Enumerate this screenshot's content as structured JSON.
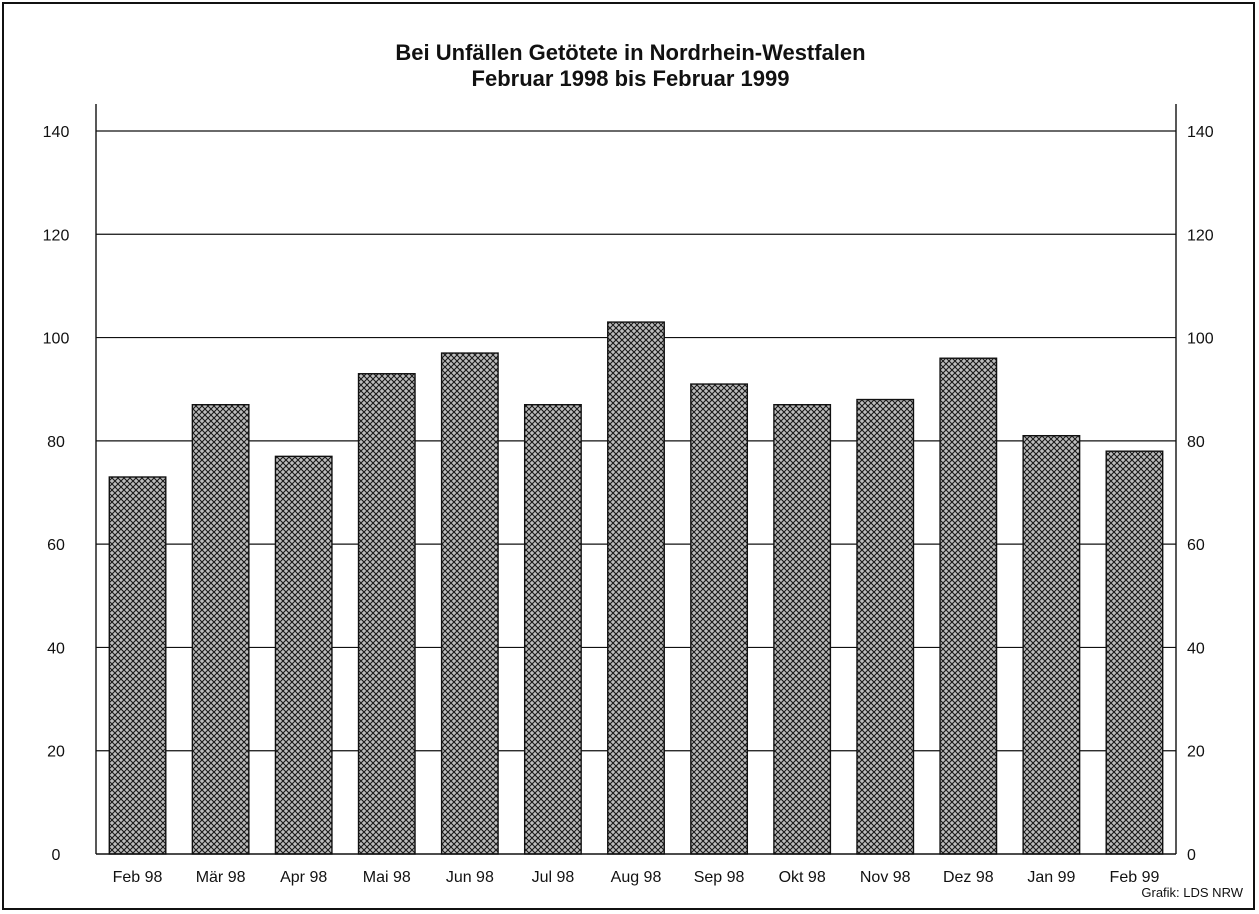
{
  "chart_data": {
    "type": "bar",
    "title_line1": "Bei Unfällen Getötete in Nordrhein-Westfalen",
    "title_line2": "Februar 1998 bis Februar 1999",
    "xlabel": "",
    "ylabel": "",
    "categories": [
      "Feb 98",
      "Mär 98",
      "Apr 98",
      "Mai 98",
      "Jun 98",
      "Jul 98",
      "Aug 98",
      "Sep 98",
      "Okt 98",
      "Nov 98",
      "Dez 98",
      "Jan 99",
      "Feb 99"
    ],
    "values": [
      73,
      87,
      77,
      93,
      97,
      87,
      103,
      91,
      87,
      88,
      96,
      81,
      78
    ],
    "ylim": [
      0,
      140
    ],
    "yticks": [
      0,
      20,
      40,
      60,
      80,
      100,
      120,
      140
    ],
    "grid": true,
    "secondary_y_axis": true,
    "bar_fill": "crosshatch",
    "colors": {
      "bar_fill": "#bdbdbd",
      "hatch": "#1a1a1a",
      "outline": "#111111"
    }
  },
  "credit": "Grafik: LDS NRW"
}
